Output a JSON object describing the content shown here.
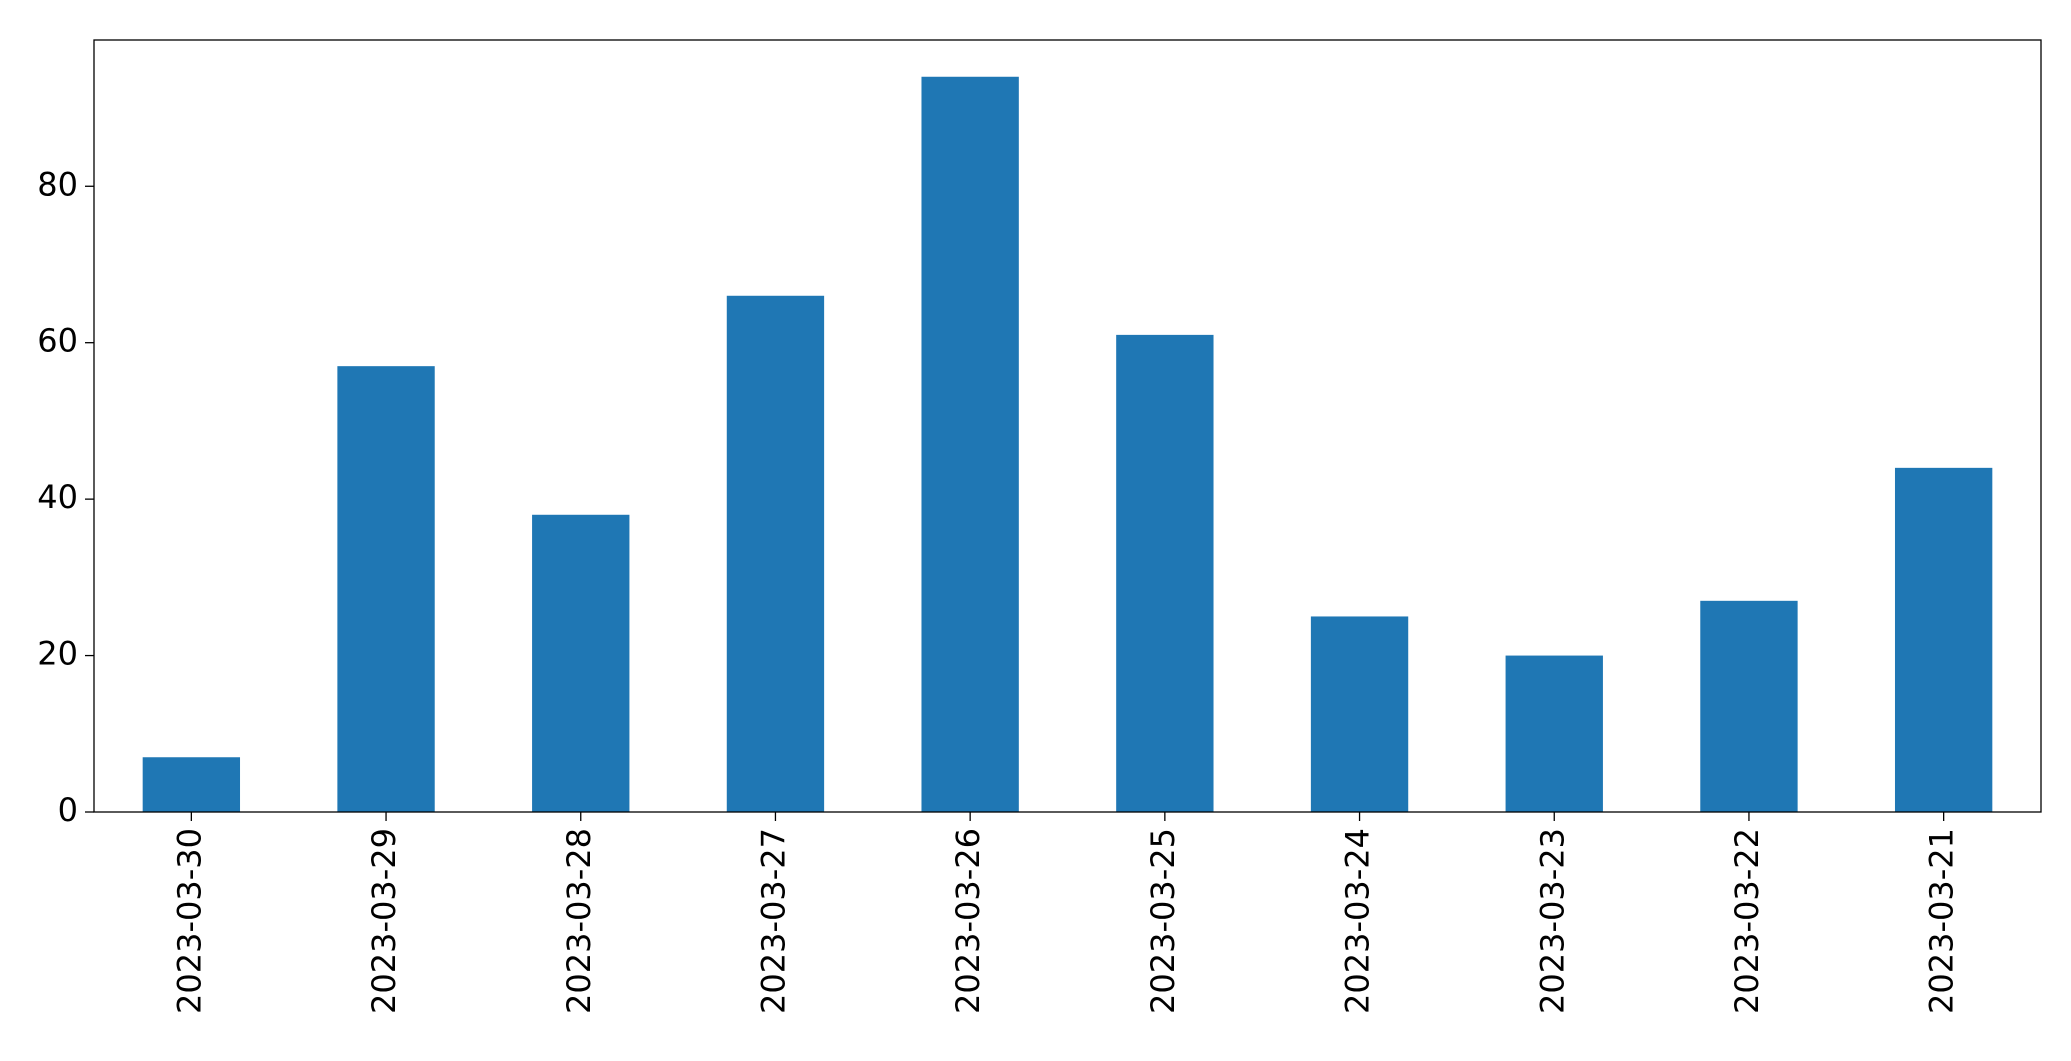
{
  "chart_data": {
    "type": "bar",
    "categories": [
      "2023-03-30",
      "2023-03-29",
      "2023-03-28",
      "2023-03-27",
      "2023-03-26",
      "2023-03-25",
      "2023-03-24",
      "2023-03-23",
      "2023-03-22",
      "2023-03-21"
    ],
    "values": [
      7,
      57,
      38,
      66,
      94,
      61,
      25,
      20,
      27,
      44
    ],
    "color": "#1f77b4",
    "ylim": [
      0,
      98.7
    ],
    "yticks": [
      0,
      20,
      40,
      60,
      80
    ],
    "grid": false
  }
}
